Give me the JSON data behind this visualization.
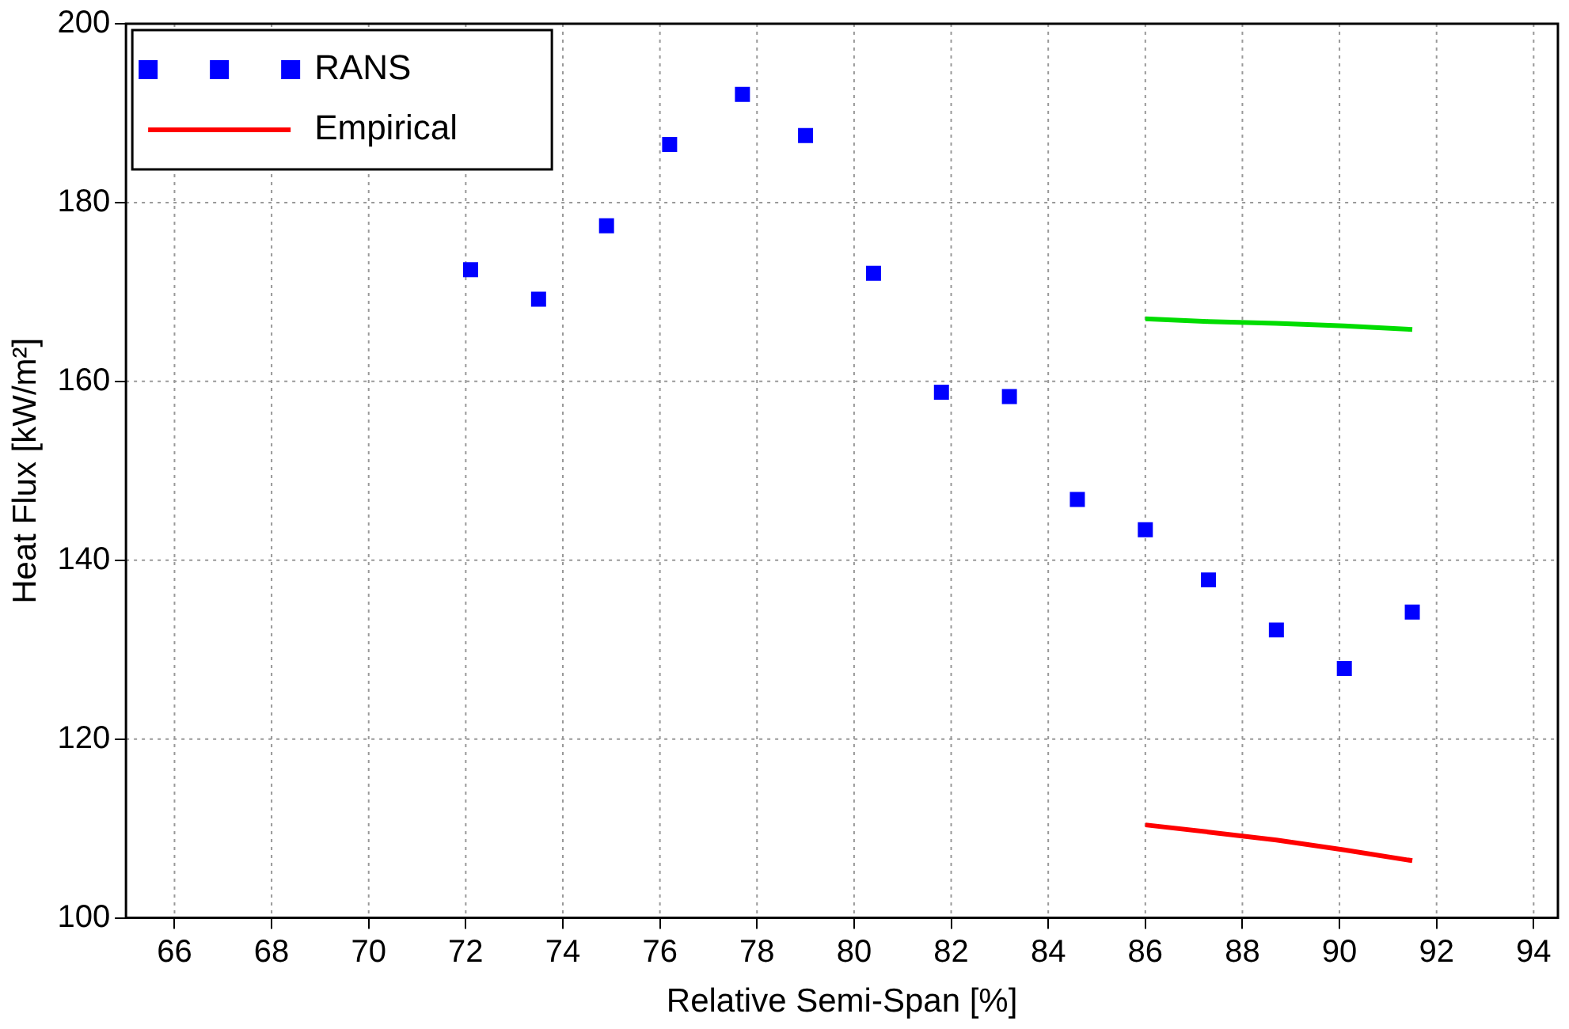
{
  "chart_data": {
    "type": "scatter",
    "xlabel": "Relative Semi-Span [%]",
    "ylabel": "Heat Flux [kW/m²]",
    "xlim": [
      65,
      94.5
    ],
    "xticks": [
      66,
      68,
      70,
      72,
      74,
      76,
      78,
      80,
      82,
      84,
      86,
      88,
      90,
      92,
      94
    ],
    "ylim": [
      100,
      200
    ],
    "yticks": [
      100,
      120,
      140,
      160,
      180,
      200
    ],
    "grid": true,
    "legend": "top left",
    "series": [
      {
        "name": "RANS",
        "type": "scatter",
        "marker": "square",
        "color": "#0000ff",
        "x": [
          72.1,
          73.5,
          74.9,
          76.2,
          77.7,
          79.0,
          80.4,
          81.8,
          83.2,
          84.6,
          86.0,
          87.3,
          88.7,
          90.1,
          91.5
        ],
        "values": [
          172.5,
          169.2,
          177.4,
          186.5,
          192.1,
          187.5,
          172.1,
          158.8,
          158.3,
          146.8,
          143.4,
          137.8,
          132.2,
          127.9,
          134.2
        ]
      },
      {
        "name": "Empirical",
        "type": "line",
        "marker": "none",
        "color": "#ff0000",
        "x": [
          86.0,
          87.3,
          88.7,
          90.1,
          91.5
        ],
        "values": [
          110.4,
          109.6,
          108.7,
          107.6,
          106.4
        ]
      },
      {
        "type": "line",
        "marker": "none",
        "color": "#00dd00",
        "x": [
          86.0,
          87.3,
          88.7,
          90.1,
          91.5
        ],
        "values": [
          167.0,
          166.7,
          166.5,
          166.2,
          165.8
        ]
      }
    ]
  }
}
